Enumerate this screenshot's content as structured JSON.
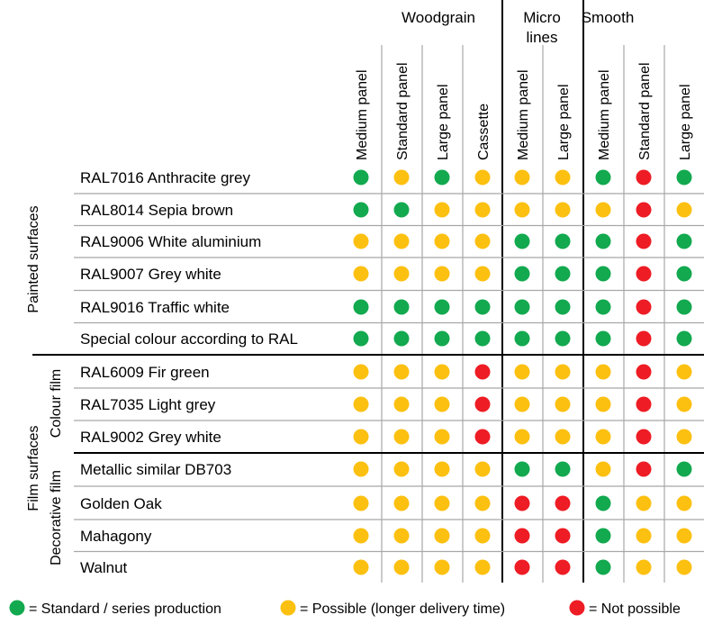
{
  "header": {
    "groups": [
      {
        "lines": [
          "Woodgrain"
        ]
      },
      {
        "lines": [
          "Micro",
          "lines"
        ]
      },
      {
        "lines": [
          "Smooth"
        ]
      }
    ],
    "columns": [
      "Medium panel",
      "Standard panel",
      "Large panel",
      "Cassette",
      "Medium panel",
      "Large panel",
      "Medium panel",
      "Standard panel",
      "Large panel"
    ]
  },
  "side_labels": {
    "painted": "Painted surfaces",
    "film": "Film surfaces",
    "colour_film": "Colour film",
    "decorative_film": "Decorative film"
  },
  "rows": [
    {
      "label": "RAL7016 Anthracite grey",
      "values": [
        "G",
        "Y",
        "G",
        "Y",
        "Y",
        "Y",
        "G",
        "R",
        "G"
      ]
    },
    {
      "label": "RAL8014 Sepia brown",
      "values": [
        "G",
        "G",
        "Y",
        "Y",
        "Y",
        "Y",
        "Y",
        "R",
        "Y"
      ]
    },
    {
      "label": "RAL9006 White aluminium",
      "values": [
        "Y",
        "Y",
        "Y",
        "Y",
        "G",
        "G",
        "G",
        "R",
        "G"
      ]
    },
    {
      "label": "RAL9007 Grey white",
      "values": [
        "Y",
        "Y",
        "Y",
        "Y",
        "G",
        "G",
        "G",
        "R",
        "G"
      ]
    },
    {
      "label": "RAL9016 Traffic white",
      "values": [
        "G",
        "G",
        "G",
        "G",
        "G",
        "G",
        "G",
        "R",
        "G"
      ]
    },
    {
      "label": "Special colour according to RAL",
      "values": [
        "G",
        "G",
        "G",
        "G",
        "G",
        "G",
        "G",
        "R",
        "G"
      ]
    },
    {
      "label": "RAL6009 Fir green",
      "values": [
        "Y",
        "Y",
        "Y",
        "R",
        "Y",
        "Y",
        "Y",
        "R",
        "Y"
      ]
    },
    {
      "label": "RAL7035 Light grey",
      "values": [
        "Y",
        "Y",
        "Y",
        "R",
        "Y",
        "Y",
        "Y",
        "R",
        "Y"
      ]
    },
    {
      "label": "RAL9002 Grey white",
      "values": [
        "Y",
        "Y",
        "Y",
        "R",
        "Y",
        "Y",
        "Y",
        "R",
        "Y"
      ]
    },
    {
      "label": "Metallic similar DB703",
      "values": [
        "Y",
        "Y",
        "Y",
        "Y",
        "G",
        "G",
        "Y",
        "R",
        "G"
      ]
    },
    {
      "label": "Golden Oak",
      "values": [
        "Y",
        "Y",
        "Y",
        "Y",
        "R",
        "R",
        "G",
        "Y",
        "Y"
      ]
    },
    {
      "label": "Mahagony",
      "values": [
        "Y",
        "Y",
        "Y",
        "Y",
        "R",
        "R",
        "G",
        "Y",
        "Y"
      ]
    },
    {
      "label": "Walnut",
      "values": [
        "Y",
        "Y",
        "Y",
        "Y",
        "R",
        "R",
        "G",
        "Y",
        "Y"
      ]
    }
  ],
  "legend": [
    {
      "code": "G",
      "text": "= Standard / series production"
    },
    {
      "code": "Y",
      "text": "= Possible (longer delivery time)"
    },
    {
      "code": "R",
      "text": "= Not possible"
    }
  ],
  "colors": {
    "G": "#12a94f",
    "Y": "#fcc010",
    "R": "#ee1c24",
    "line": "#000000",
    "thin_line": "#a8a8a8"
  }
}
